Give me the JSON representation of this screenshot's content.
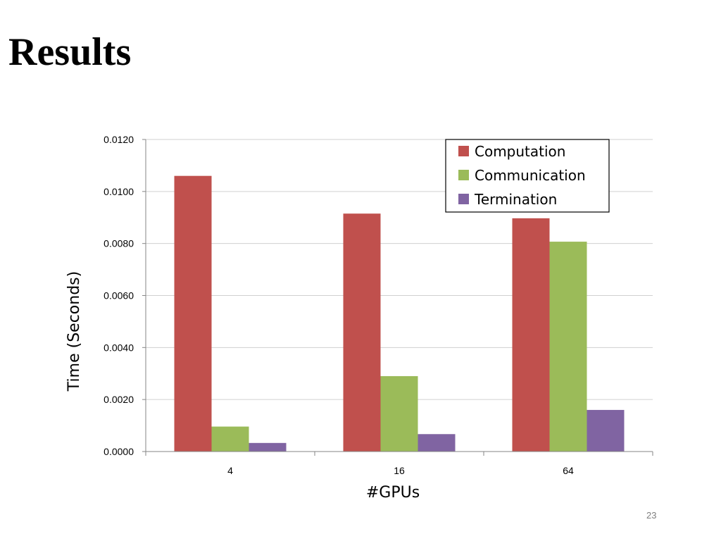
{
  "slide": {
    "title": "Results",
    "page_number": "23"
  },
  "chart_data": {
    "type": "bar",
    "categories": [
      "4",
      "16",
      "64"
    ],
    "series": [
      {
        "name": "Computation",
        "values": [
          0.0106,
          0.00915,
          0.00897
        ],
        "color": "#c0504d"
      },
      {
        "name": "Communication",
        "values": [
          0.00096,
          0.0029,
          0.00807
        ],
        "color": "#9bbb59"
      },
      {
        "name": "Termination",
        "values": [
          0.00033,
          0.00067,
          0.0016
        ],
        "color": "#8064a2"
      }
    ],
    "xlabel": "#GPUs",
    "ylabel": "Time (Seconds)",
    "ylim": [
      0,
      0.012
    ],
    "yticks": [
      "0.0000",
      "0.0020",
      "0.0040",
      "0.0060",
      "0.0080",
      "0.0100",
      "0.0120"
    ],
    "grid": true,
    "legend": "top-right"
  }
}
